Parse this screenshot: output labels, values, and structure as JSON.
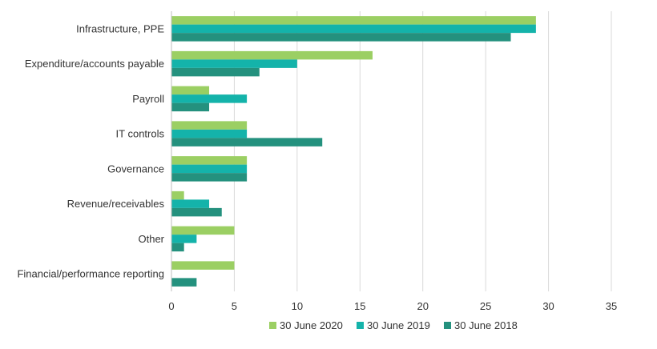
{
  "chart_data": {
    "type": "bar",
    "orientation": "horizontal",
    "categories": [
      "Infrastructure, PPE",
      "Expenditure/accounts payable",
      "Payroll",
      "IT controls",
      "Governance",
      "Revenue/receivables",
      "Other",
      "Financial/performance reporting"
    ],
    "series": [
      {
        "name": "30 June 2020",
        "color": "#9bcf63",
        "values": [
          29,
          16,
          3,
          6,
          6,
          1,
          5,
          5
        ]
      },
      {
        "name": "30 June 2019",
        "color": "#14b3aa",
        "values": [
          29,
          10,
          6,
          6,
          6,
          3,
          2,
          0
        ]
      },
      {
        "name": "30 June 2018",
        "color": "#24917e",
        "values": [
          27,
          7,
          3,
          12,
          6,
          4,
          1,
          2
        ]
      }
    ],
    "xlim": [
      0,
      35
    ],
    "xticks": [
      "0",
      "5",
      "10",
      "15",
      "20",
      "25",
      "30",
      "35"
    ],
    "grid": "vertical",
    "legend_position": "bottom"
  }
}
